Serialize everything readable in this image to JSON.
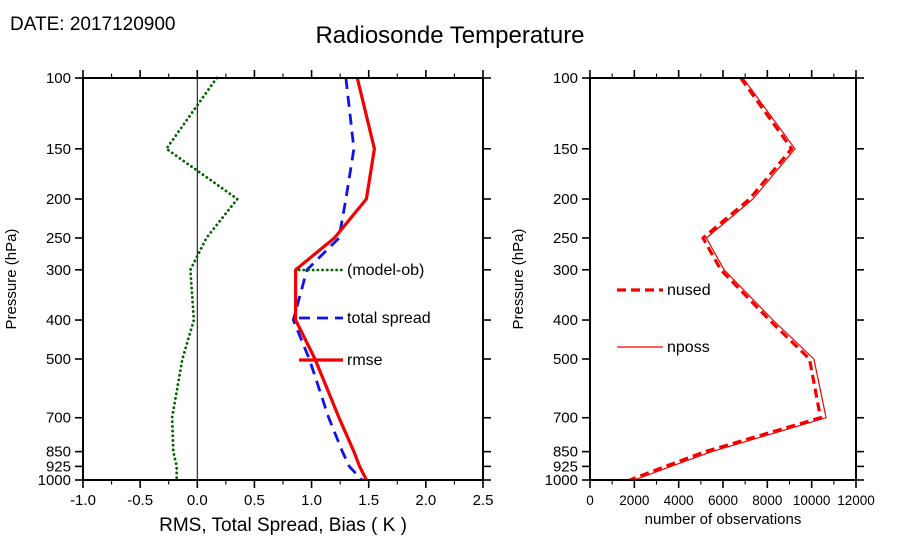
{
  "header": {
    "date_label": "DATE: 2017120900",
    "title": "Radiosonde Temperature"
  },
  "colors": {
    "bias_green": "#006400",
    "spread_blue": "#1111ee",
    "rmse_red": "#f40000",
    "axis_black": "#000000"
  },
  "chart_data": [
    {
      "type": "line",
      "panel": "left",
      "xlabel": "RMS, Total Spread, Bias ( K )",
      "ylabel": "Pressure (hPa)",
      "x_axis": {
        "min": -1.0,
        "max": 2.5,
        "ticks": [
          -1.0,
          -0.5,
          0.0,
          0.5,
          1.0,
          1.5,
          2.0,
          2.5
        ],
        "tick_labels": [
          "-1.0",
          "-0.5",
          "0.0",
          "0.5",
          "1.0",
          "1.5",
          "2.0",
          "2.5"
        ],
        "minor_ticks": [
          -0.75,
          -0.25,
          0.25,
          0.75,
          1.25,
          1.75,
          2.25
        ]
      },
      "y_axis": {
        "min": 100,
        "max": 1000,
        "scale": "log",
        "inverted": true,
        "ticks": [
          100,
          150,
          200,
          250,
          300,
          400,
          500,
          700,
          850,
          925,
          1000
        ],
        "tick_labels": [
          "100",
          "150",
          "200",
          "250",
          "300",
          "400",
          "500",
          "700",
          "850",
          "925",
          "1000"
        ]
      },
      "zero_line_x": 0.0,
      "pressure_levels": [
        100,
        150,
        200,
        250,
        300,
        400,
        500,
        700,
        850,
        925,
        1000
      ],
      "series": [
        {
          "name": "(model-ob)",
          "color": "#006400",
          "style": "dotted",
          "dash": "0.1 4.6",
          "width": 2.8,
          "values": [
            0.17,
            -0.27,
            0.35,
            0.08,
            -0.06,
            -0.03,
            -0.13,
            -0.22,
            -0.21,
            -0.18,
            -0.18
          ]
        },
        {
          "name": "total spread",
          "color": "#1111ee",
          "style": "dashed",
          "dash": "11 7",
          "width": 2.8,
          "values": [
            1.3,
            1.37,
            1.3,
            1.24,
            0.96,
            0.84,
            0.98,
            1.15,
            1.27,
            1.33,
            1.44
          ]
        },
        {
          "name": "rmse",
          "color": "#f40000",
          "style": "solid",
          "width": 3.2,
          "values": [
            1.4,
            1.55,
            1.48,
            1.2,
            0.86,
            0.86,
            1.03,
            1.24,
            1.37,
            1.42,
            1.48
          ]
        }
      ],
      "legend": [
        "(model-ob)",
        "total spread",
        "rmse"
      ]
    },
    {
      "type": "line",
      "panel": "right",
      "xlabel": "number of observations",
      "ylabel": "Pressure (hPa)",
      "x_axis": {
        "min": 0,
        "max": 12000,
        "ticks": [
          0,
          2000,
          4000,
          6000,
          8000,
          10000,
          12000
        ],
        "tick_labels": [
          "0",
          "2000",
          "4000",
          "6000",
          "8000",
          "10000",
          "12000"
        ],
        "minor_ticks": [
          1000,
          3000,
          5000,
          7000,
          9000,
          11000
        ]
      },
      "y_axis": {
        "min": 100,
        "max": 1000,
        "scale": "log",
        "inverted": true,
        "ticks": [
          100,
          150,
          200,
          250,
          300,
          400,
          500,
          700,
          850,
          925,
          1000
        ],
        "tick_labels": [
          "100",
          "150",
          "200",
          "250",
          "300",
          "400",
          "500",
          "700",
          "850",
          "925",
          "1000"
        ]
      },
      "pressure_levels": [
        100,
        150,
        200,
        250,
        300,
        400,
        500,
        700,
        850,
        925,
        1000
      ],
      "series": [
        {
          "name": "nused",
          "color": "#f40000",
          "style": "dashed",
          "dash": "9 5",
          "width": 3.2,
          "values": [
            6800,
            9100,
            7200,
            5100,
            5900,
            8100,
            9900,
            10400,
            5200,
            3400,
            1800
          ]
        },
        {
          "name": "nposs",
          "color": "#f40000",
          "style": "solid",
          "width": 1.2,
          "values": [
            6900,
            9250,
            7350,
            5250,
            6050,
            8250,
            10100,
            10650,
            5500,
            3650,
            2000
          ]
        }
      ],
      "legend": [
        "nused",
        "nposs"
      ]
    }
  ]
}
